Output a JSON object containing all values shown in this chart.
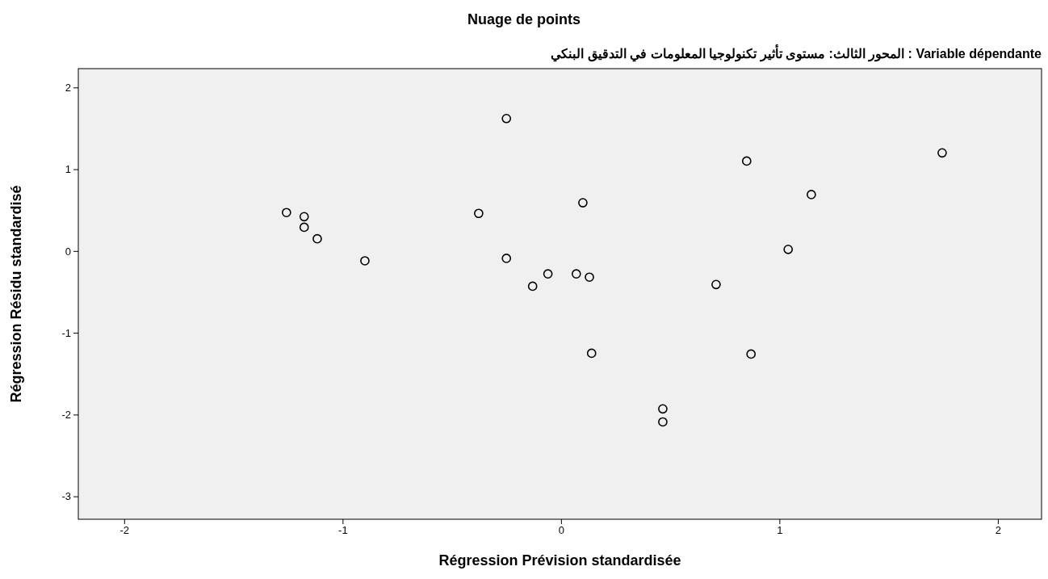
{
  "chart_data": {
    "type": "scatter",
    "title": "Nuage de points",
    "subtitle": "Variable dépendante : المحور الثالث: مستوى تأثير تكنولوجيا المعلومات في التدقيق البنكي",
    "xlabel": "Régression Prévision standardisée",
    "ylabel": "Régression Résidu standardisé",
    "marker": "circle",
    "grid": false,
    "xlim": [
      -2.21,
      2.2
    ],
    "ylim": [
      -3.28,
      2.23
    ],
    "xticks": [
      -2,
      -1,
      0,
      1,
      2
    ],
    "yticks": [
      -3,
      -2,
      -1,
      0,
      1,
      2
    ],
    "series": [
      {
        "color": "#000000",
        "x": [
          -1.257,
          -1.176,
          -1.176,
          -1.116,
          -0.898,
          -0.377,
          -0.25,
          -0.25,
          -0.13,
          -0.06,
          0.07,
          0.1,
          0.13,
          0.14,
          0.466,
          0.466,
          0.71,
          0.85,
          0.87,
          1.04,
          1.146,
          1.745
        ],
        "values": [
          0.47,
          0.42,
          0.29,
          0.15,
          -0.12,
          0.46,
          1.62,
          -0.09,
          -0.43,
          -0.28,
          -0.28,
          0.59,
          -0.32,
          -1.25,
          -1.93,
          -2.09,
          -0.41,
          1.1,
          -1.26,
          0.02,
          0.69,
          1.2
        ]
      }
    ]
  }
}
